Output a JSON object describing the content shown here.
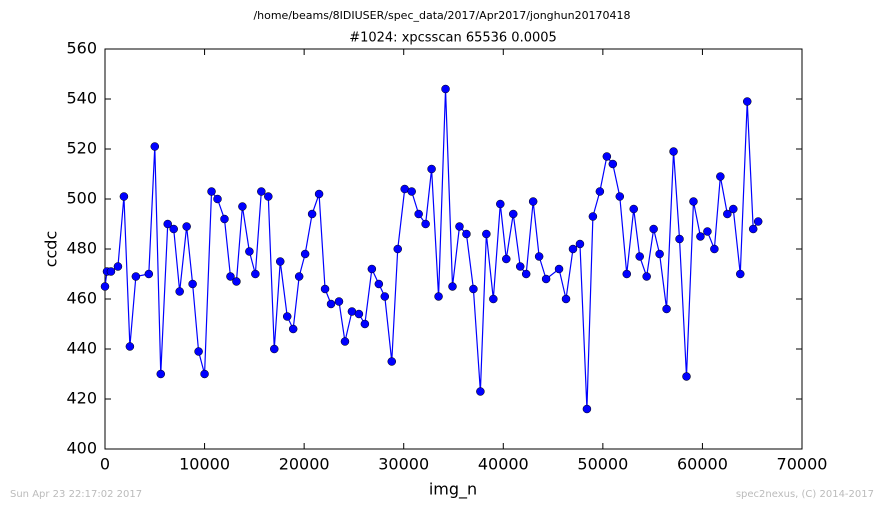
{
  "chart_data": {
    "type": "line",
    "suptitle": "/home/beams/8IDIUSER/spec_data/2017/Apr2017/jonghun20170418",
    "title": "#1024: xpcsscan 65536 0.0005",
    "xlabel": "img_n",
    "ylabel": "ccdc",
    "footer_left": "Sun Apr 23 22:17:02 2017",
    "footer_right": "spec2nexus, (C) 2014-2017",
    "color": "#0000ff",
    "marker": true,
    "x": [
      0,
      200,
      600,
      1300,
      1900,
      2500,
      3100,
      4400,
      5000,
      5600,
      6300,
      6900,
      7500,
      8200,
      8800,
      9400,
      10000,
      10700,
      11300,
      12000,
      12600,
      13200,
      13800,
      14500,
      15100,
      15700,
      16400,
      17000,
      17600,
      18300,
      18900,
      19500,
      20100,
      20800,
      21500,
      22100,
      22700,
      23500,
      24100,
      24800,
      25500,
      26100,
      26800,
      27500,
      28100,
      28800,
      29400,
      30100,
      30800,
      31500,
      32200,
      32800,
      33500,
      34200,
      34900,
      35600,
      36300,
      37000,
      37700,
      38300,
      39000,
      39700,
      40300,
      41000,
      41700,
      42300,
      43000,
      43600,
      44300,
      45600,
      46300,
      47000,
      47700,
      48400,
      49000,
      49700,
      50400,
      51000,
      51700,
      52400,
      53100,
      53700,
      54400,
      55100,
      55700,
      56400,
      57100,
      57700,
      58400,
      59100,
      59800,
      60500,
      61200,
      61800,
      62500,
      63100,
      63800,
      64500,
      65100,
      65600
    ],
    "values": [
      465,
      471,
      471,
      473,
      501,
      441,
      469,
      470,
      521,
      430,
      490,
      488,
      463,
      489,
      466,
      439,
      430,
      503,
      500,
      492,
      469,
      467,
      497,
      479,
      470,
      503,
      501,
      440,
      475,
      453,
      448,
      469,
      478,
      494,
      502,
      464,
      458,
      459,
      443,
      455,
      454,
      450,
      472,
      466,
      461,
      435,
      480,
      504,
      503,
      494,
      490,
      512,
      461,
      544,
      465,
      489,
      486,
      464,
      423,
      486,
      460,
      498,
      476,
      494,
      473,
      470,
      499,
      477,
      468,
      472,
      460,
      480,
      482,
      416,
      493,
      503,
      517,
      514,
      501,
      470,
      496,
      477,
      469,
      488,
      478,
      456,
      519,
      484,
      429,
      499,
      485,
      487,
      480,
      509,
      494,
      496,
      470,
      539,
      488,
      491
    ],
    "xlim": [
      0,
      70000
    ],
    "ylim": [
      400,
      560
    ],
    "xticks": [
      0,
      10000,
      20000,
      30000,
      40000,
      50000,
      60000,
      70000
    ],
    "yticks": [
      400,
      420,
      440,
      460,
      480,
      500,
      520,
      540,
      560
    ]
  }
}
